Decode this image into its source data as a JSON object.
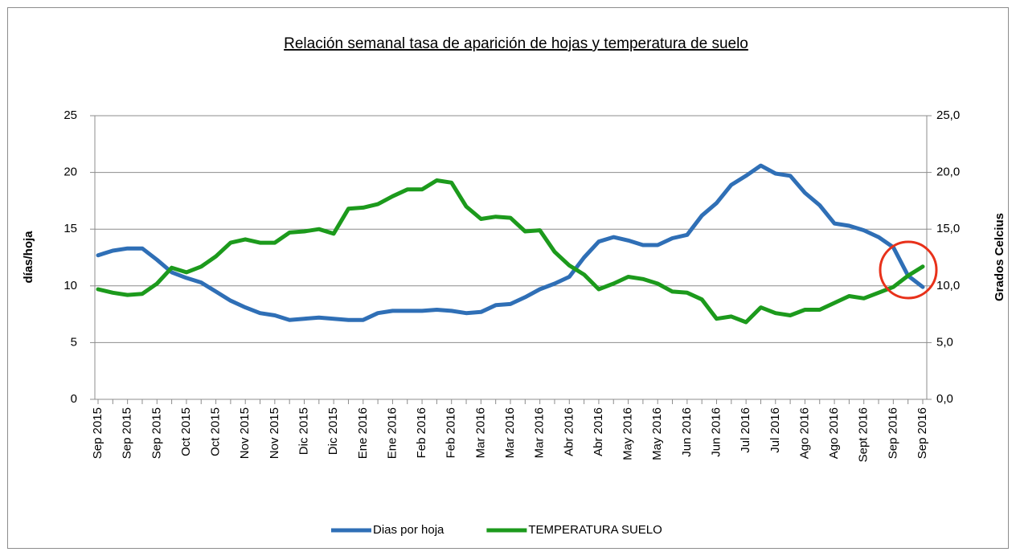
{
  "chart_data": {
    "type": "line",
    "title": "Relación semanal tasa de aparición de hojas y temperatura de suelo",
    "y_label": "días/hoja",
    "y2_label": "Grados Celcius",
    "categories": [
      "Sep 2015",
      null,
      "Sep 2015",
      null,
      "Sep 2015",
      null,
      "Oct 2015",
      null,
      "Oct 2015",
      null,
      "Nov 2015",
      null,
      "Nov 2015",
      null,
      "Dic 2015",
      null,
      "Dic 2015",
      null,
      "Ene 2016",
      null,
      "Ene 2016",
      null,
      "Feb 2016",
      null,
      "Feb 2016",
      null,
      "Mar 2016",
      null,
      "Mar 2016",
      null,
      "Mar 2016",
      null,
      "Abr 2016",
      null,
      "Abr 2016",
      null,
      "May 2016",
      null,
      "May 2016",
      null,
      "Jun 2016",
      null,
      "Jun 2016",
      null,
      "Jul 2016",
      null,
      "Jul 2016",
      null,
      "Ago 2016",
      null,
      "Ago 2016",
      null,
      "Sept 2016",
      null,
      "Sep 2016",
      null,
      "Sep 2016"
    ],
    "series": [
      {
        "name": "Dias por hoja",
        "color": "#2f6fb6",
        "values": [
          12.7,
          13.1,
          13.3,
          13.3,
          12.3,
          11.2,
          10.7,
          10.3,
          9.5,
          8.7,
          8.1,
          7.6,
          7.4,
          7.0,
          7.1,
          7.2,
          7.1,
          7.0,
          7.0,
          7.6,
          7.8,
          7.8,
          7.8,
          7.9,
          7.8,
          7.6,
          7.7,
          8.3,
          8.4,
          9.0,
          9.7,
          10.2,
          10.8,
          12.5,
          13.9,
          14.3,
          14.0,
          13.6,
          13.6,
          14.2,
          14.5,
          16.2,
          17.3,
          18.9,
          19.7,
          20.6,
          19.9,
          19.7,
          18.2,
          17.1,
          15.5,
          15.3,
          14.9,
          14.3,
          13.4,
          10.9,
          9.9
        ]
      },
      {
        "name": "TEMPERATURA SUELO",
        "color": "#1c9a1c",
        "axis": "y2",
        "values": [
          9.7,
          9.4,
          9.2,
          9.3,
          10.2,
          11.6,
          11.2,
          11.7,
          12.6,
          13.8,
          14.1,
          13.8,
          13.8,
          14.7,
          14.8,
          15.0,
          14.6,
          16.8,
          16.9,
          17.2,
          17.9,
          18.5,
          18.5,
          19.3,
          19.1,
          17.0,
          15.9,
          16.1,
          16.0,
          14.8,
          14.9,
          13.0,
          11.8,
          11.0,
          9.7,
          10.2,
          10.8,
          10.6,
          10.2,
          9.5,
          9.4,
          8.8,
          7.1,
          7.3,
          6.8,
          8.1,
          7.6,
          7.4,
          7.9,
          7.9,
          8.5,
          9.1,
          8.9,
          9.4,
          9.9,
          10.9,
          11.7
        ]
      }
    ],
    "ylim": [
      0,
      25
    ],
    "yticks": [
      0,
      5,
      10,
      15,
      20,
      25
    ],
    "y2lim": [
      0,
      25
    ],
    "y2ticks": [
      {
        "value": 0,
        "label": "0,0"
      },
      {
        "value": 5,
        "label": "5,0"
      },
      {
        "value": 10,
        "label": "10,0"
      },
      {
        "value": 15,
        "label": "15,0"
      },
      {
        "value": 20,
        "label": "20,0"
      },
      {
        "value": 25,
        "label": "25,0"
      }
    ],
    "grid": true,
    "legend": "bottom"
  }
}
